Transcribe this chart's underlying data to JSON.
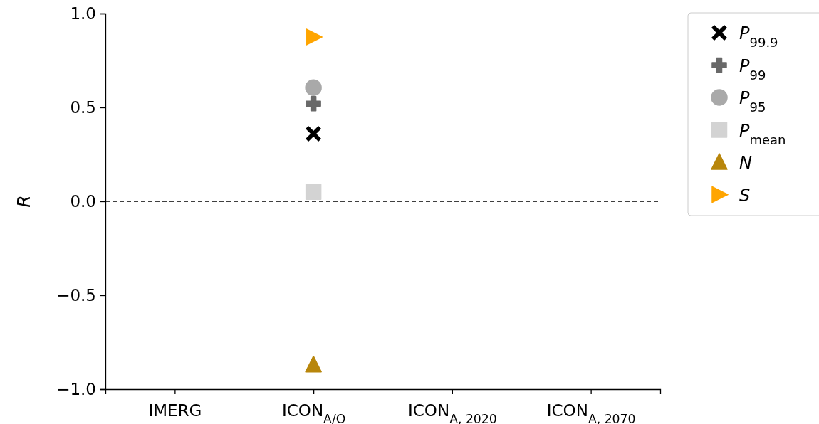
{
  "chart_data": {
    "type": "scatter",
    "ylabel": "R",
    "categories": [
      "IMERG",
      "ICON$_{A/O}$",
      "ICON$_{A, 2020}$",
      "ICON$_{A, 2070}$"
    ],
    "ylim": [
      -1,
      1
    ],
    "yticks": [
      {
        "value": -1,
        "label": "−1.0"
      },
      {
        "value": -0.5,
        "label": "−0.5"
      },
      {
        "value": 0,
        "label": "0.0"
      },
      {
        "value": 0.5,
        "label": "0.5"
      },
      {
        "value": 1,
        "label": "1.0"
      }
    ],
    "legend": "right",
    "grid": false,
    "ref_lines": [
      {
        "axis": "y",
        "value": 0,
        "color": "#000000",
        "line_style": "dashed"
      }
    ],
    "series": [
      {
        "name": "P$_{99.9}$",
        "color": "#000000",
        "marker": "x",
        "values": [
          null,
          0.36,
          null,
          null
        ]
      },
      {
        "name": "P$_{99}$",
        "color": "#696969",
        "marker": "plus",
        "values": [
          null,
          0.52,
          null,
          null
        ]
      },
      {
        "name": "P$_{95}$",
        "color": "#a9a9a9",
        "marker": "circle",
        "values": [
          null,
          0.605,
          null,
          null
        ]
      },
      {
        "name": "P$_{mean}$",
        "color": "#d3d3d3",
        "marker": "square",
        "values": [
          null,
          0.05,
          null,
          null
        ]
      },
      {
        "name": "N",
        "color": "#b8860b",
        "marker": "triangle",
        "values": [
          null,
          -0.87,
          null,
          null
        ]
      },
      {
        "name": "S",
        "color": "#ffa500",
        "marker": "triangle-right",
        "values": [
          null,
          0.875,
          null,
          null
        ]
      }
    ]
  }
}
